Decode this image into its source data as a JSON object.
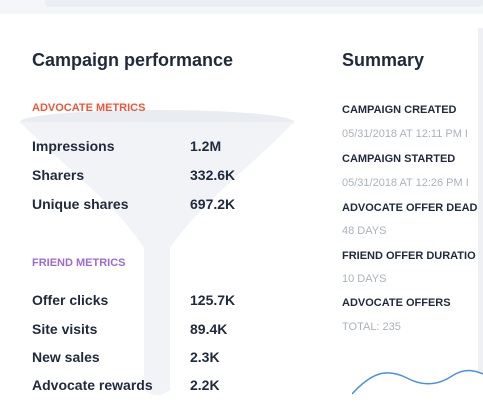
{
  "campaign_performance": {
    "title": "Campaign performance",
    "advocate_metrics": {
      "label": "ADVOCATE METRICS",
      "color": "#f0553a",
      "rows": [
        {
          "name": "Impressions",
          "value": "1.2M"
        },
        {
          "name": "Sharers",
          "value": "332.6K"
        },
        {
          "name": "Unique shares",
          "value": "697.2K"
        }
      ]
    },
    "friend_metrics": {
      "label": "FRIEND METRICS",
      "color": "#9b6bd3",
      "rows": [
        {
          "name": "Offer clicks",
          "value": "125.7K"
        },
        {
          "name": "Site visits",
          "value": "89.4K"
        },
        {
          "name": "New sales",
          "value": "2.3K"
        },
        {
          "name": "Advocate rewards",
          "value": "2.2K"
        }
      ]
    }
  },
  "summary": {
    "title": "Summary",
    "items": [
      {
        "label": "CAMPAIGN CREATED",
        "value": "05/31/2018 AT 12:11 PM I"
      },
      {
        "label": "CAMPAIGN STARTED",
        "value": "05/31/2018 AT 12:26 PM I"
      },
      {
        "label": "ADVOCATE OFFER DEAD",
        "value": "48 DAYS"
      },
      {
        "label": "FRIEND OFFER DURATIO",
        "value": "10 DAYS"
      },
      {
        "label": "ADVOCATE OFFERS",
        "value": "TOTAL: 235"
      }
    ]
  },
  "colors": {
    "wave": "#4a90e2",
    "funnel": "#eef0f3"
  }
}
